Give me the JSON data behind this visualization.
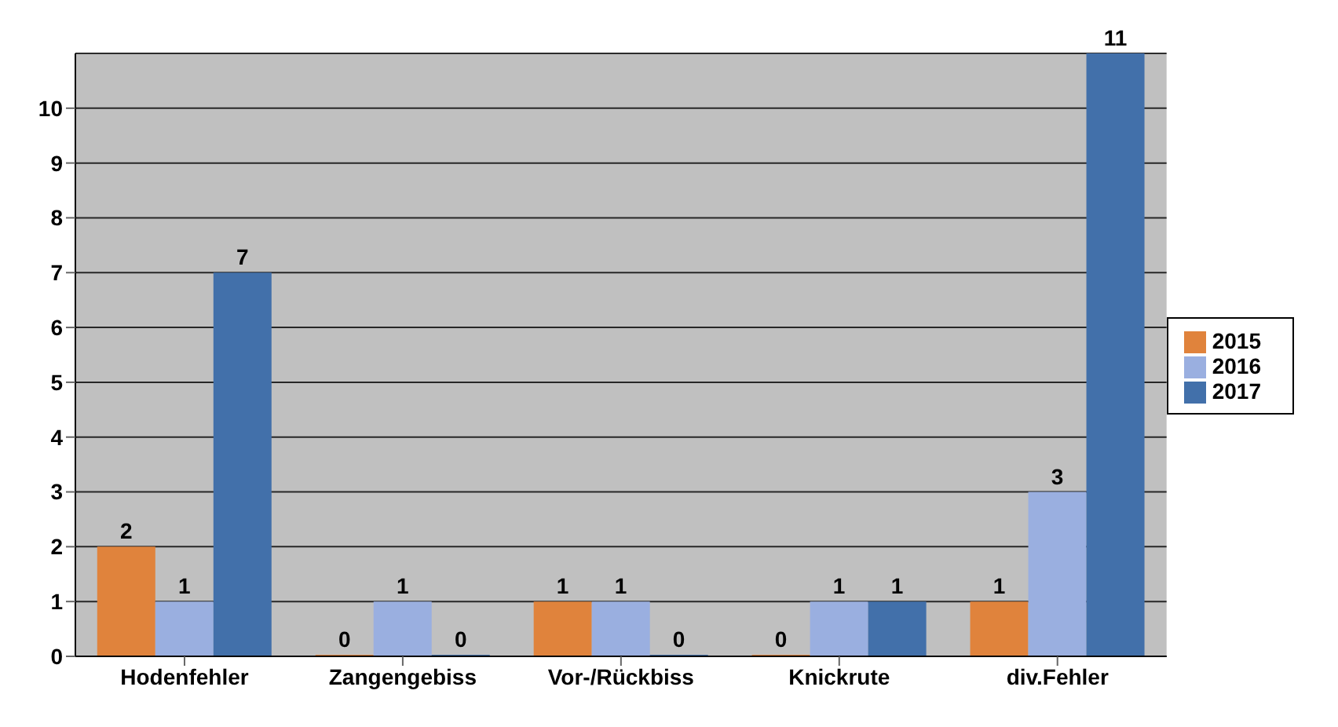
{
  "chart_data": {
    "type": "bar",
    "categories": [
      "Hodenfehler",
      "Zangengebiss",
      "Vor-/Rückbiss",
      "Knickrute",
      "div.Fehler"
    ],
    "series": [
      {
        "name": "2015",
        "color": "#e0833c",
        "values": [
          2,
          0,
          1,
          0,
          1
        ]
      },
      {
        "name": "2016",
        "color": "#9aafe0",
        "values": [
          1,
          1,
          1,
          1,
          3
        ]
      },
      {
        "name": "2017",
        "color": "#4270aa",
        "values": [
          7,
          0,
          0,
          1,
          11
        ]
      }
    ],
    "ylim": [
      0,
      11
    ],
    "yticks": [
      0,
      1,
      2,
      3,
      4,
      5,
      6,
      7,
      8,
      9,
      10
    ],
    "grid": "y",
    "legend": "right",
    "data_labels": true
  }
}
